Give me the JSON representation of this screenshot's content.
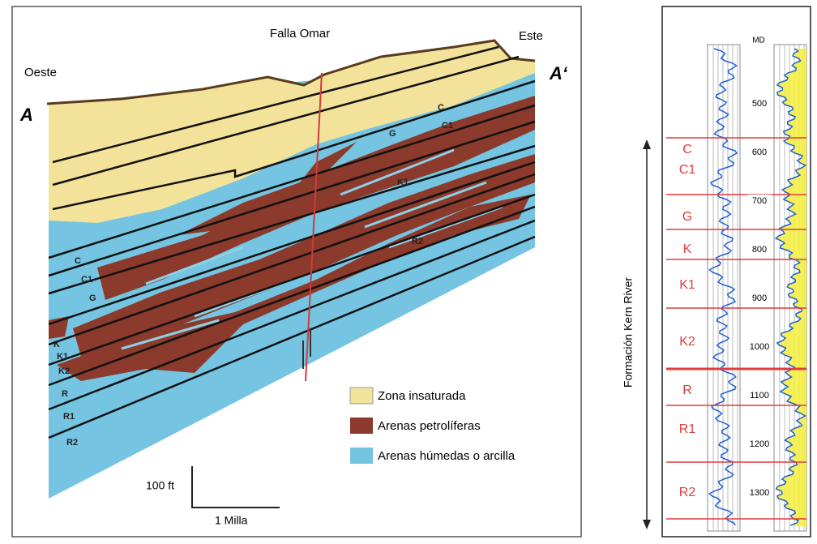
{
  "section": {
    "fault_label": "Falla Omar",
    "west": "Oeste",
    "east": "Este",
    "point_a": "A",
    "point_a_prime": "A‘",
    "left_layers": [
      "C",
      "C1",
      "G",
      "K",
      "K1",
      "K2",
      "R",
      "R1",
      "R2"
    ],
    "right_layers": [
      "C",
      "C1",
      "G",
      "K1",
      "R2"
    ]
  },
  "legend": {
    "items": [
      "Zona insaturada",
      "Arenas petrolíferas",
      "Arenas húmedas o arcilla"
    ]
  },
  "scale": {
    "vertical": "100 ft",
    "horizontal": "1 Milla"
  },
  "log": {
    "header": "MD",
    "formation": "Formación Kern River",
    "zones": [
      "C",
      "C1",
      "G",
      "K",
      "K1",
      "K2",
      "R",
      "R1",
      "R2"
    ],
    "depths": [
      500,
      600,
      700,
      800,
      900,
      1000,
      1100,
      1200,
      1300
    ]
  }
}
